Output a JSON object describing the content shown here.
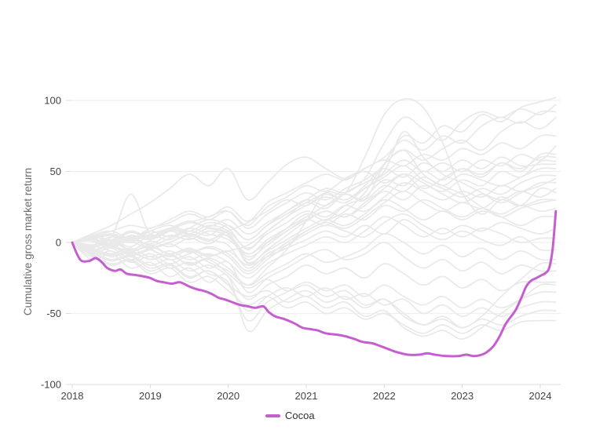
{
  "legend": {
    "label": "Cocoa"
  },
  "theme": {
    "background": "#ffffff",
    "highlight": "#c55ecf",
    "background_line": "#e9e9e9",
    "grid_line": "#f0f0f0",
    "axis_line": "#e4e4e4",
    "tick_mark": "#dcdcdc",
    "tick_label": "#444444",
    "axis_title": "#6e6e6e"
  },
  "chart_data": {
    "type": "line",
    "title": "",
    "xlabel": "",
    "ylabel": "Cumulative gross market return",
    "xlim": [
      2018,
      2024.2
    ],
    "ylim": [
      -100,
      100
    ],
    "grid": "horizontal",
    "legend_position": "bottom-center",
    "x_ticks": [
      {
        "value": 2018,
        "label": "2018"
      },
      {
        "value": 2019,
        "label": "2019"
      },
      {
        "value": 2020,
        "label": "2020"
      },
      {
        "value": 2021,
        "label": "2021"
      },
      {
        "value": 2022,
        "label": "2022"
      },
      {
        "value": 2023,
        "label": "2023"
      },
      {
        "value": 2024,
        "label": "2024"
      }
    ],
    "y_ticks": [
      {
        "value": 100,
        "label": "100"
      },
      {
        "value": 50,
        "label": "50"
      },
      {
        "value": 0,
        "label": "0"
      },
      {
        "value": -50,
        "label": "-50"
      },
      {
        "value": -100,
        "label": "-100"
      }
    ],
    "highlight_series": {
      "name": "Cocoa",
      "color": "#c55ecf",
      "points": [
        [
          2018.0,
          0
        ],
        [
          2018.06,
          -8
        ],
        [
          2018.12,
          -13
        ],
        [
          2018.22,
          -13
        ],
        [
          2018.3,
          -11
        ],
        [
          2018.38,
          -14
        ],
        [
          2018.45,
          -18
        ],
        [
          2018.55,
          -20
        ],
        [
          2018.62,
          -19
        ],
        [
          2018.7,
          -22
        ],
        [
          2018.82,
          -23
        ],
        [
          2018.92,
          -24
        ],
        [
          2019.0,
          -25
        ],
        [
          2019.08,
          -27
        ],
        [
          2019.17,
          -28
        ],
        [
          2019.28,
          -29
        ],
        [
          2019.38,
          -28
        ],
        [
          2019.5,
          -31
        ],
        [
          2019.6,
          -33
        ],
        [
          2019.68,
          -34
        ],
        [
          2019.78,
          -36
        ],
        [
          2019.88,
          -39
        ],
        [
          2019.95,
          -40
        ],
        [
          2020.05,
          -42
        ],
        [
          2020.15,
          -44
        ],
        [
          2020.25,
          -45
        ],
        [
          2020.35,
          -46
        ],
        [
          2020.45,
          -45
        ],
        [
          2020.52,
          -49
        ],
        [
          2020.6,
          -52
        ],
        [
          2020.72,
          -54
        ],
        [
          2020.85,
          -57
        ],
        [
          2020.95,
          -60
        ],
        [
          2021.05,
          -61
        ],
        [
          2021.15,
          -62
        ],
        [
          2021.25,
          -64
        ],
        [
          2021.4,
          -65
        ],
        [
          2021.5,
          -66
        ],
        [
          2021.62,
          -68
        ],
        [
          2021.72,
          -70
        ],
        [
          2021.85,
          -71
        ],
        [
          2021.95,
          -73
        ],
        [
          2022.05,
          -75
        ],
        [
          2022.15,
          -77
        ],
        [
          2022.3,
          -79
        ],
        [
          2022.45,
          -79
        ],
        [
          2022.55,
          -78
        ],
        [
          2022.65,
          -79
        ],
        [
          2022.8,
          -80
        ],
        [
          2022.95,
          -80
        ],
        [
          2023.05,
          -79
        ],
        [
          2023.15,
          -80
        ],
        [
          2023.25,
          -79
        ],
        [
          2023.32,
          -77
        ],
        [
          2023.4,
          -73
        ],
        [
          2023.48,
          -66
        ],
        [
          2023.55,
          -58
        ],
        [
          2023.6,
          -54
        ],
        [
          2023.68,
          -48
        ],
        [
          2023.75,
          -40
        ],
        [
          2023.82,
          -31
        ],
        [
          2023.88,
          -27
        ],
        [
          2023.95,
          -25
        ],
        [
          2024.02,
          -23
        ],
        [
          2024.08,
          -21
        ],
        [
          2024.12,
          -17
        ],
        [
          2024.16,
          -4
        ],
        [
          2024.2,
          22
        ]
      ]
    },
    "background_series": {
      "color": "#e9e9e9",
      "x": [
        2018,
        2018.25,
        2018.5,
        2018.75,
        2019,
        2019.25,
        2019.5,
        2019.75,
        2020,
        2020.25,
        2020.5,
        2020.75,
        2021,
        2021.25,
        2021.5,
        2021.75,
        2022,
        2022.25,
        2022.5,
        2022.75,
        2023,
        2023.25,
        2023.5,
        2023.75,
        2024,
        2024.2
      ],
      "series": [
        [
          0,
          3,
          -2,
          4,
          2,
          8,
          14,
          10,
          6,
          -8,
          2,
          10,
          18,
          26,
          34,
          30,
          55,
          75,
          70,
          82,
          78,
          90,
          85,
          95,
          99,
          102
        ],
        [
          0,
          -4,
          2,
          -3,
          5,
          2,
          10,
          16,
          12,
          2,
          12,
          22,
          30,
          38,
          35,
          45,
          70,
          88,
          80,
          72,
          85,
          92,
          88,
          94,
          90,
          97
        ],
        [
          0,
          5,
          8,
          3,
          10,
          14,
          20,
          16,
          22,
          12,
          25,
          32,
          40,
          36,
          45,
          52,
          60,
          72,
          65,
          75,
          70,
          82,
          88,
          84,
          92,
          92
        ],
        [
          0,
          -2,
          -6,
          -10,
          -5,
          -12,
          -8,
          -4,
          -10,
          -22,
          -12,
          -2,
          8,
          15,
          22,
          35,
          55,
          65,
          58,
          66,
          72,
          65,
          78,
          85,
          80,
          88
        ],
        [
          0,
          2,
          6,
          1,
          -5,
          -10,
          -6,
          -14,
          -20,
          -30,
          -18,
          -5,
          15,
          35,
          35,
          60,
          90,
          101,
          95,
          70,
          35,
          20,
          30,
          26,
          38,
          35
        ],
        [
          0,
          -3,
          1,
          -6,
          -2,
          -8,
          -4,
          -9,
          -6,
          -2,
          8,
          18,
          28,
          24,
          35,
          42,
          50,
          78,
          60,
          48,
          42,
          35,
          28,
          35,
          40,
          45
        ],
        [
          0,
          2,
          -3,
          3,
          -4,
          0,
          6,
          2,
          8,
          14,
          22,
          30,
          26,
          35,
          30,
          40,
          55,
          65,
          48,
          40,
          34,
          25,
          18,
          24,
          28,
          30
        ],
        [
          0,
          6,
          12,
          20,
          28,
          38,
          48,
          40,
          52,
          30,
          42,
          55,
          60,
          52,
          45,
          50,
          42,
          48,
          38,
          45,
          52,
          48,
          56,
          52,
          60,
          60
        ],
        [
          0,
          4,
          8,
          12,
          10,
          16,
          22,
          18,
          25,
          15,
          28,
          35,
          42,
          48,
          44,
          52,
          58,
          54,
          62,
          58,
          66,
          62,
          70,
          66,
          75,
          75
        ],
        [
          0,
          -2,
          4,
          0,
          8,
          12,
          8,
          14,
          10,
          -5,
          8,
          18,
          26,
          32,
          28,
          38,
          48,
          58,
          50,
          56,
          50,
          58,
          54,
          62,
          58,
          68
        ],
        [
          0,
          3,
          -1,
          5,
          2,
          8,
          4,
          10,
          6,
          -12,
          0,
          10,
          20,
          16,
          26,
          32,
          44,
          40,
          50,
          44,
          52,
          46,
          56,
          50,
          62,
          62
        ],
        [
          0,
          -5,
          -2,
          -8,
          -4,
          0,
          5,
          1,
          7,
          -15,
          -5,
          5,
          15,
          22,
          18,
          28,
          38,
          48,
          42,
          36,
          44,
          40,
          50,
          46,
          57,
          57
        ],
        [
          0,
          2,
          5,
          1,
          6,
          10,
          15,
          11,
          16,
          6,
          14,
          22,
          30,
          26,
          34,
          30,
          40,
          36,
          46,
          40,
          48,
          44,
          40,
          46,
          52,
          52
        ],
        [
          0,
          -3,
          0,
          4,
          -2,
          3,
          8,
          5,
          12,
          2,
          12,
          20,
          28,
          34,
          30,
          38,
          46,
          54,
          44,
          38,
          32,
          38,
          34,
          42,
          47,
          47
        ],
        [
          0,
          4,
          1,
          7,
          3,
          9,
          6,
          12,
          8,
          -4,
          6,
          14,
          22,
          18,
          26,
          22,
          32,
          42,
          36,
          30,
          36,
          32,
          40,
          36,
          42,
          42
        ],
        [
          0,
          1,
          -4,
          2,
          -1,
          5,
          2,
          8,
          4,
          -10,
          -2,
          8,
          16,
          22,
          18,
          26,
          36,
          30,
          40,
          34,
          28,
          34,
          30,
          36,
          32,
          38
        ],
        [
          0,
          -6,
          -3,
          -9,
          -5,
          -1,
          -7,
          -3,
          -8,
          -20,
          -10,
          0,
          8,
          14,
          10,
          18,
          28,
          36,
          28,
          22,
          28,
          24,
          32,
          26,
          30,
          30
        ],
        [
          0,
          3,
          6,
          2,
          8,
          4,
          10,
          6,
          2,
          -8,
          0,
          8,
          16,
          12,
          20,
          16,
          26,
          22,
          30,
          24,
          18,
          24,
          20,
          26,
          22,
          24
        ],
        [
          0,
          -2,
          2,
          -5,
          1,
          -3,
          3,
          -1,
          5,
          -14,
          -6,
          2,
          10,
          16,
          12,
          20,
          30,
          24,
          16,
          22,
          16,
          22,
          18,
          12,
          18,
          18
        ],
        [
          0,
          5,
          2,
          8,
          4,
          10,
          6,
          2,
          -2,
          -18,
          -8,
          -2,
          6,
          12,
          8,
          4,
          14,
          20,
          12,
          6,
          12,
          8,
          14,
          10,
          6,
          10
        ],
        [
          0,
          -4,
          -8,
          -4,
          -10,
          -6,
          -12,
          -8,
          -14,
          -25,
          -15,
          -8,
          -2,
          4,
          0,
          8,
          18,
          12,
          4,
          10,
          4,
          10,
          6,
          0,
          3,
          3
        ],
        [
          0,
          2,
          -2,
          -6,
          -3,
          -8,
          -5,
          -10,
          -6,
          -16,
          -10,
          -4,
          2,
          8,
          4,
          12,
          6,
          16,
          8,
          2,
          8,
          2,
          -2,
          4,
          -5,
          -5
        ],
        [
          0,
          -5,
          -10,
          -7,
          -12,
          -9,
          -15,
          -11,
          -18,
          -30,
          -22,
          -15,
          -8,
          -14,
          -10,
          -4,
          6,
          0,
          -8,
          -2,
          -10,
          -4,
          -12,
          -6,
          -12,
          -12
        ],
        [
          0,
          -8,
          -4,
          -12,
          -8,
          -15,
          -10,
          -18,
          -14,
          -35,
          -25,
          -18,
          -10,
          -5,
          -12,
          -8,
          0,
          -10,
          -18,
          -12,
          -20,
          -14,
          -22,
          -16,
          -20,
          -20
        ],
        [
          0,
          -6,
          -12,
          -9,
          -16,
          -12,
          -20,
          -16,
          -24,
          -40,
          -30,
          -24,
          -16,
          -22,
          -18,
          -25,
          -15,
          -22,
          -30,
          -24,
          -32,
          -26,
          -34,
          -28,
          -28,
          -28
        ],
        [
          0,
          -10,
          -6,
          -14,
          -10,
          -18,
          -14,
          -22,
          -28,
          -55,
          -42,
          -35,
          -28,
          -34,
          -30,
          -38,
          -30,
          -38,
          -44,
          -38,
          -46,
          -40,
          -46,
          -40,
          -35,
          -35
        ],
        [
          0,
          -8,
          -15,
          -12,
          -20,
          -16,
          -25,
          -20,
          -30,
          -48,
          -38,
          -32,
          -38,
          -32,
          -40,
          -36,
          -44,
          -40,
          -50,
          -44,
          -52,
          -46,
          -52,
          -46,
          -42,
          -42
        ],
        [
          0,
          -12,
          -8,
          -18,
          -14,
          -24,
          -18,
          -28,
          -24,
          -62,
          -48,
          -40,
          -34,
          -42,
          -38,
          -46,
          -40,
          -50,
          -58,
          -52,
          -60,
          -54,
          -58,
          -52,
          -48,
          -48
        ],
        [
          0,
          -9,
          -16,
          -13,
          -22,
          -18,
          -28,
          -24,
          -34,
          -44,
          -38,
          -46,
          -42,
          -50,
          -46,
          -54,
          -50,
          -58,
          -64,
          -58,
          -64,
          -58,
          -62,
          -56,
          -55,
          -55
        ],
        [
          0,
          -7,
          -13,
          -10,
          -18,
          -15,
          -24,
          -20,
          -30,
          -38,
          -34,
          -42,
          -38,
          -46,
          -42,
          -52,
          -48,
          -60,
          -66,
          -62,
          -68,
          -60,
          -50,
          -40,
          -30,
          -30
        ],
        [
          0,
          -5,
          -9,
          -6,
          -12,
          -8,
          -16,
          -12,
          -22,
          -32,
          -26,
          -34,
          -30,
          -38,
          -34,
          -44,
          -40,
          -52,
          -58,
          -54,
          -60,
          -52,
          -38,
          -26,
          -15,
          -15
        ],
        [
          0,
          2,
          4,
          34,
          6,
          10,
          14,
          18,
          22,
          10,
          20,
          28,
          35,
          30,
          38,
          44,
          52,
          46,
          56,
          50,
          58,
          52,
          60,
          54,
          55,
          55
        ]
      ]
    }
  }
}
